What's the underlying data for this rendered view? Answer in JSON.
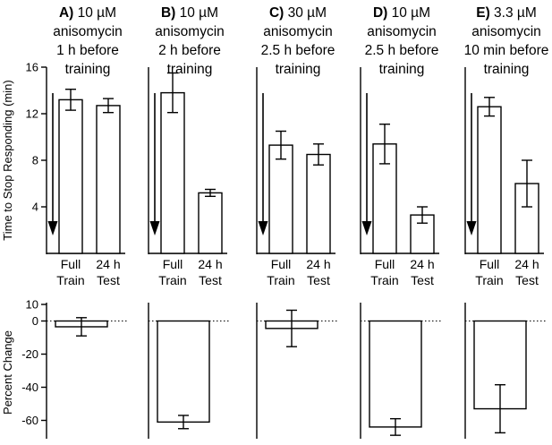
{
  "chart_data": [
    {
      "type": "bar",
      "panel": "A",
      "title": [
        "A) 10 µM",
        "anisomycin",
        "1 h before",
        "training"
      ],
      "title_bold": "A)",
      "categories": [
        [
          "Full",
          "Train"
        ],
        [
          "24 h",
          "Test"
        ]
      ],
      "values": [
        13.2,
        12.7
      ],
      "errors": [
        0.9,
        0.6
      ],
      "ylabel": "Time to Stop Responding (min)",
      "ylim": [
        0,
        16
      ],
      "yticks": [
        4,
        8,
        12,
        16
      ],
      "change": {
        "values": [
          -3.5
        ],
        "errors": [
          5.5
        ],
        "ylabel": "Percent Change",
        "ylim": [
          -70,
          10
        ],
        "yticks": [
          10,
          0,
          -20,
          -40,
          -60
        ],
        "reference_line": 0
      }
    },
    {
      "type": "bar",
      "panel": "B",
      "title": [
        "B) 10 µM",
        "anisomycin",
        "2 h before",
        "training"
      ],
      "title_bold": "B)",
      "categories": [
        [
          "Full",
          "Train"
        ],
        [
          "24 h",
          "Test"
        ]
      ],
      "values": [
        13.8,
        5.2
      ],
      "errors": [
        1.7,
        0.3
      ],
      "ylim": [
        0,
        16
      ],
      "change": {
        "values": [
          -61
        ],
        "errors": [
          4
        ],
        "ylim": [
          -70,
          10
        ],
        "reference_line": 0
      }
    },
    {
      "type": "bar",
      "panel": "C",
      "title": [
        "C) 30 µM",
        "anisomycin",
        "2.5 h before",
        "training"
      ],
      "title_bold": "C)",
      "categories": [
        [
          "Full",
          "Train"
        ],
        [
          "24 h",
          "Test"
        ]
      ],
      "values": [
        9.3,
        8.5
      ],
      "errors": [
        1.2,
        0.9
      ],
      "ylim": [
        0,
        16
      ],
      "change": {
        "values": [
          -4.5
        ],
        "errors": [
          11
        ],
        "ylim": [
          -70,
          10
        ],
        "reference_line": 0
      }
    },
    {
      "type": "bar",
      "panel": "D",
      "title": [
        "D) 10 µM",
        "anisomycin",
        "2.5 h before",
        "training"
      ],
      "title_bold": "D)",
      "categories": [
        [
          "Full",
          "Train"
        ],
        [
          "24 h",
          "Test"
        ]
      ],
      "values": [
        9.4,
        3.3
      ],
      "errors": [
        1.7,
        0.7
      ],
      "ylim": [
        0,
        16
      ],
      "change": {
        "values": [
          -64
        ],
        "errors": [
          5
        ],
        "ylim": [
          -70,
          10
        ],
        "reference_line": 0
      }
    },
    {
      "type": "bar",
      "panel": "E",
      "title": [
        "E) 3.3 µM",
        "anisomycin",
        "10 min before",
        "training"
      ],
      "title_bold": "E)",
      "categories": [
        [
          "Full",
          "Train"
        ],
        [
          "24 h",
          "Test"
        ]
      ],
      "values": [
        12.6,
        6.0
      ],
      "errors": [
        0.8,
        2.0
      ],
      "ylim": [
        0,
        16
      ],
      "change": {
        "values": [
          -53
        ],
        "errors": [
          14.5
        ],
        "ylim": [
          -70,
          10
        ],
        "reference_line": 0
      }
    }
  ]
}
